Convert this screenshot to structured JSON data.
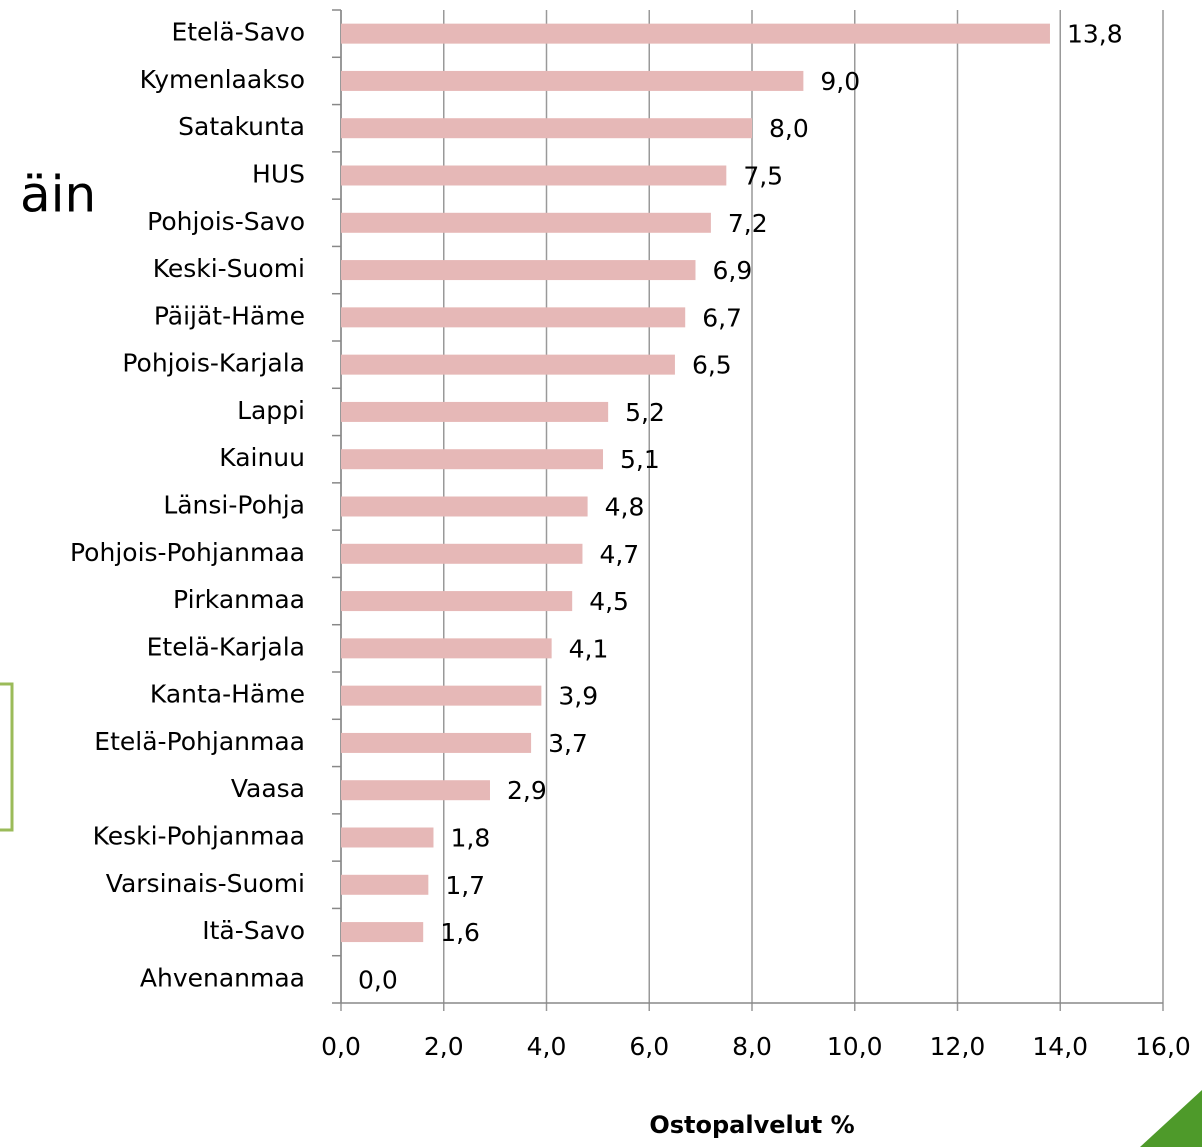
{
  "chart_data": {
    "type": "bar",
    "orientation": "horizontal",
    "annotation": "äin",
    "x_label": "Ostopalvelut %",
    "categories": [
      "Etelä-Savo",
      "Kymenlaakso",
      "Satakunta",
      "HUS",
      "Pohjois-Savo",
      "Keski-Suomi",
      "Päijät-Häme",
      "Pohjois-Karjala",
      "Lappi",
      "Kainuu",
      "Länsi-Pohja",
      "Pohjois-Pohjanmaa",
      "Pirkanmaa",
      "Etelä-Karjala",
      "Kanta-Häme",
      "Etelä-Pohjanmaa",
      "Vaasa",
      "Keski-Pohjanmaa",
      "Varsinais-Suomi",
      "Itä-Savo",
      "Ahvenanmaa"
    ],
    "values": [
      13.8,
      9.0,
      8.0,
      7.5,
      7.2,
      6.9,
      6.7,
      6.5,
      5.2,
      5.1,
      4.8,
      4.7,
      4.5,
      4.1,
      3.9,
      3.7,
      2.9,
      1.8,
      1.7,
      1.6,
      0.0
    ],
    "value_labels": [
      "13,8",
      "9,0",
      "8,0",
      "7,5",
      "7,2",
      "6,9",
      "6,7",
      "6,5",
      "5,2",
      "5,1",
      "4,8",
      "4,7",
      "4,5",
      "4,1",
      "3,9",
      "3,7",
      "2,9",
      "1,8",
      "1,7",
      "1,6",
      "0,0"
    ],
    "color": "#e6b8b7",
    "xlim": [
      0,
      16
    ],
    "xticks": [
      {
        "value": 0,
        "label": "0,0"
      },
      {
        "value": 2,
        "label": "2,0"
      },
      {
        "value": 4,
        "label": "4,0"
      },
      {
        "value": 6,
        "label": "6,0"
      },
      {
        "value": 8,
        "label": "8,0"
      },
      {
        "value": 10,
        "label": "10,0"
      },
      {
        "value": 12,
        "label": "12,0"
      },
      {
        "value": 14,
        "label": "14,0"
      },
      {
        "value": 16,
        "label": "16,0"
      }
    ],
    "grid": true
  }
}
